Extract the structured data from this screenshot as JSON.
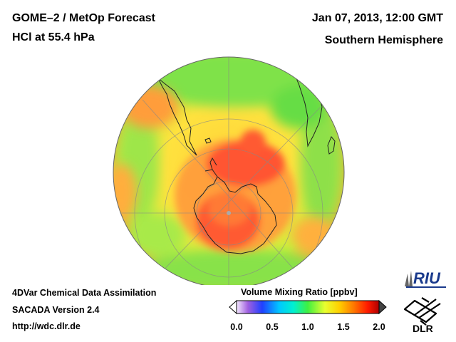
{
  "header": {
    "title_line1": "GOME–2 / MetOp Forecast",
    "title_line2": "HCl at 55.4 hPa",
    "date": "Jan 07, 2013, 12:00 GMT",
    "hemisphere": "Southern Hemisphere"
  },
  "footer": {
    "line1": "4DVar Chemical Data Assimilation",
    "line2": "SACADA Version 2.4",
    "line3": "http://wdc.dlr.de"
  },
  "colorbar": {
    "title": "Volume Mixing Ratio [ppbv]",
    "ticks": [
      "0.0",
      "0.5",
      "1.0",
      "1.5",
      "2.0"
    ],
    "colors": [
      "#ffffff",
      "#8a2be2",
      "#0000ff",
      "#00bfff",
      "#00ffff",
      "#00ff80",
      "#66ff33",
      "#ffff00",
      "#ffb000",
      "#ff6000",
      "#ff0000",
      "#cc0000",
      "#555555"
    ]
  },
  "logos": {
    "riu": "RIU",
    "dlr": "DLR"
  },
  "map": {
    "projection": "orthographic",
    "center": "South Pole"
  }
}
